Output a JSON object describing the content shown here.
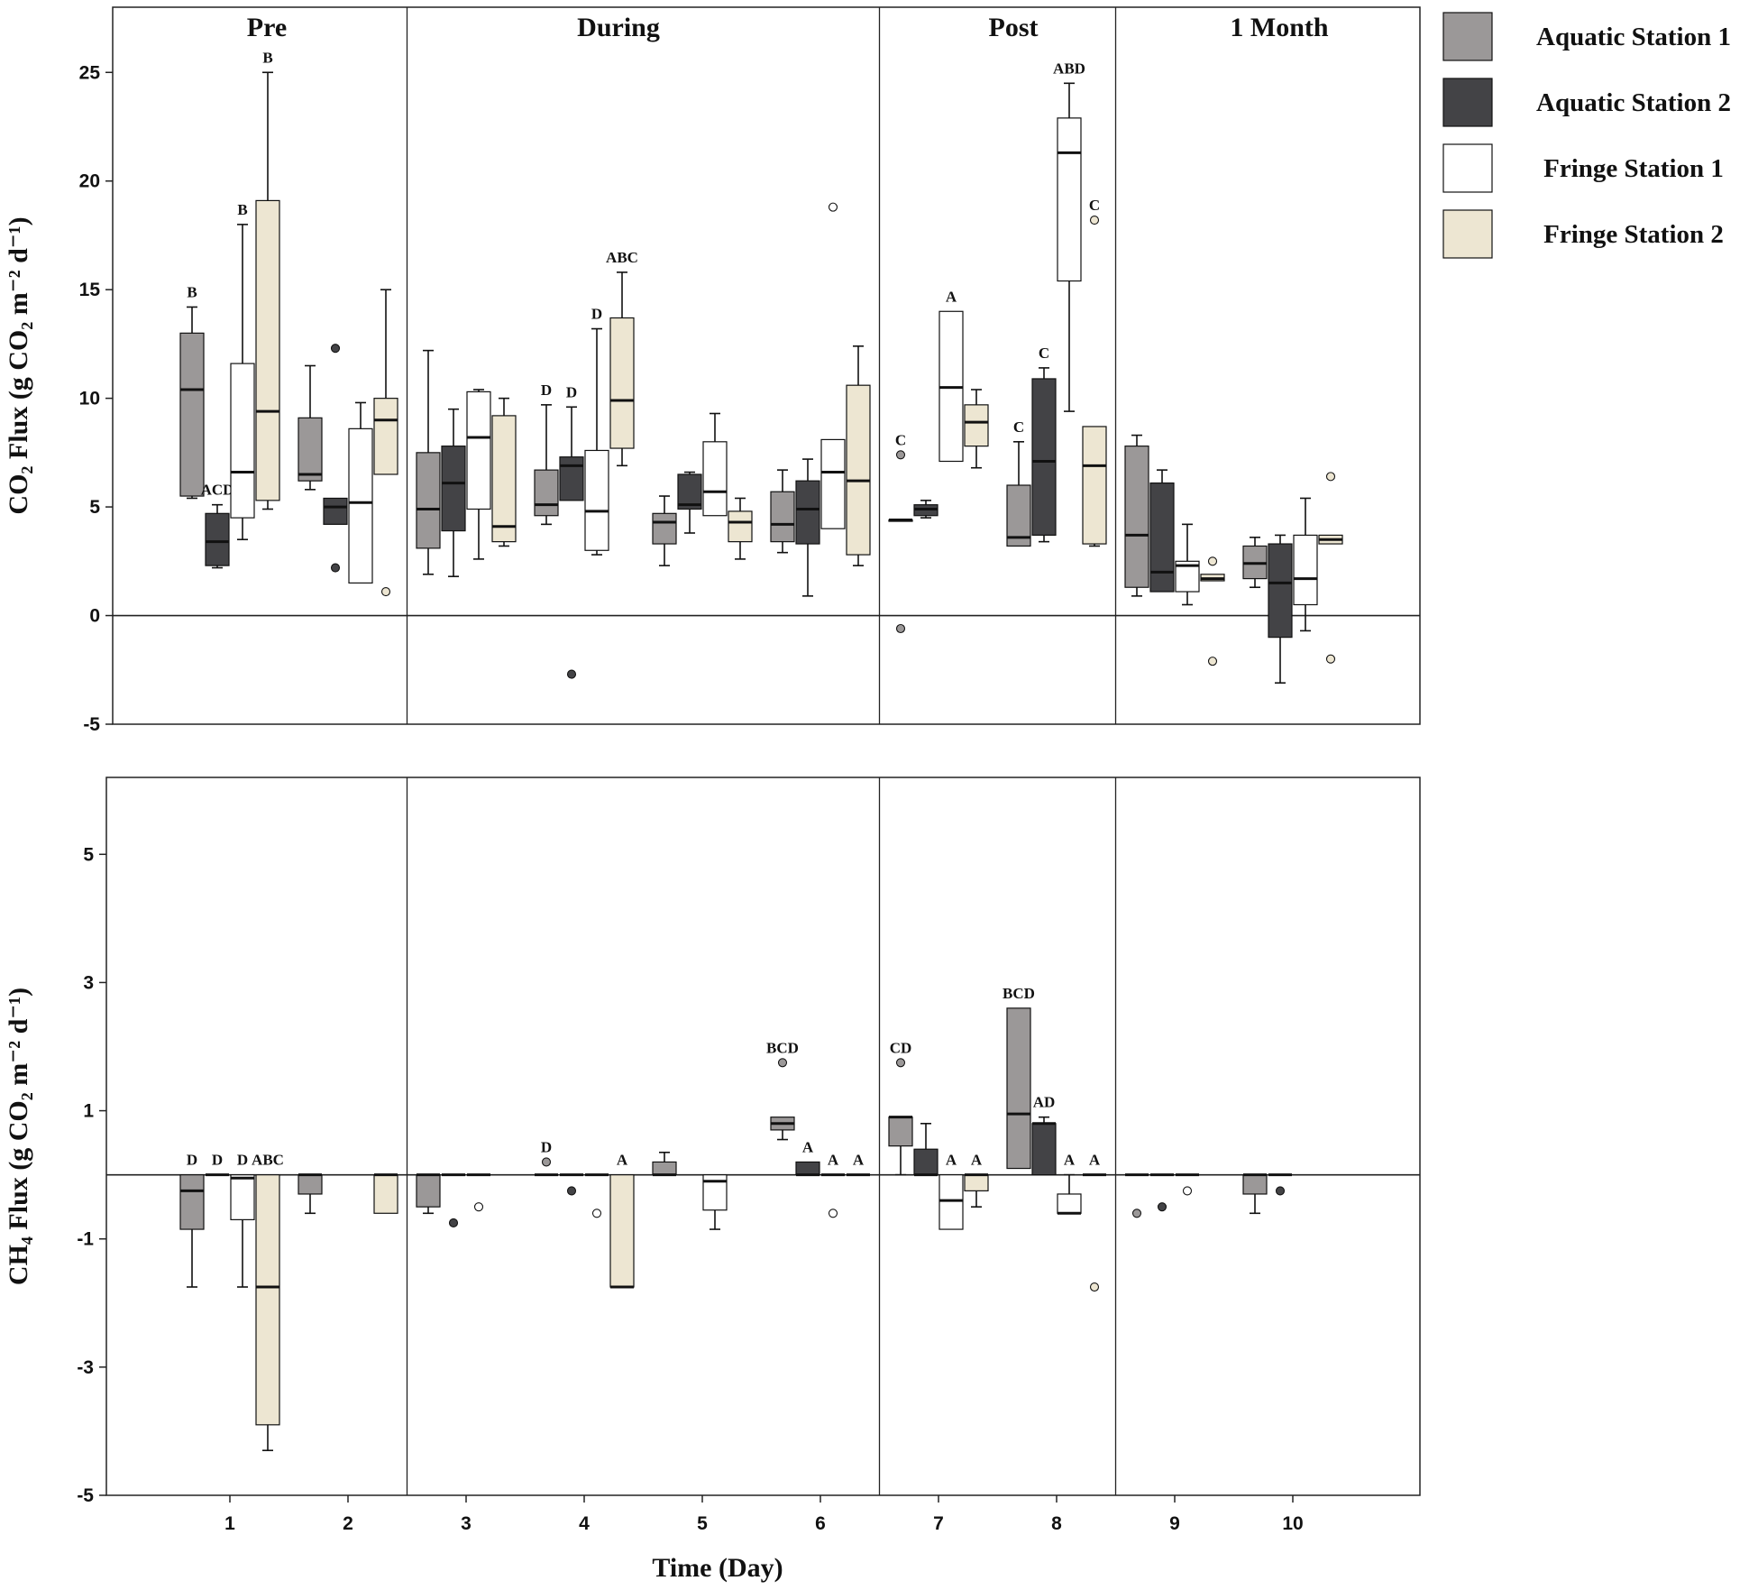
{
  "chart_data": {
    "type": "box",
    "xlabel": "Time (Day)",
    "days": [
      "1",
      "2",
      "3",
      "4",
      "5",
      "6",
      "7",
      "8",
      "9",
      "10"
    ],
    "phases": [
      "Pre",
      "During",
      "Post",
      "1 Month"
    ],
    "series": [
      {
        "name": "Aquatic Station 1",
        "color": "#9b9898"
      },
      {
        "name": "Aquatic Station 2",
        "color": "#434346"
      },
      {
        "name": "Fringe Station 1",
        "color": "#ffffff"
      },
      {
        "name": "Fringe Station 2",
        "color": "#ede6d2"
      }
    ],
    "panels": [
      {
        "id": "co2",
        "ylabel": "CO₂ Flux (g CO₂ m⁻² d⁻¹)",
        "ylim": [
          -5,
          28
        ],
        "yticks": [
          "-5",
          "0",
          "5",
          "10",
          "15",
          "20",
          "25"
        ],
        "tick_values": [
          -5,
          0,
          5,
          10,
          15,
          20,
          25
        ],
        "phase_breaks": [
          2.5,
          6.5,
          8.5
        ],
        "boxes": [
          {
            "day": 1,
            "s": 0,
            "q1": 5.5,
            "med": 10.4,
            "q3": 13.0,
            "lo": 5.4,
            "hi": 14.2,
            "letter": "B",
            "out": []
          },
          {
            "day": 1,
            "s": 1,
            "q1": 2.3,
            "med": 3.4,
            "q3": 4.7,
            "lo": 2.2,
            "hi": 5.1,
            "letter": "ACD",
            "out": []
          },
          {
            "day": 1,
            "s": 2,
            "q1": 4.5,
            "med": 6.6,
            "q3": 11.6,
            "lo": 3.5,
            "hi": 18.0,
            "letter": "B",
            "out": []
          },
          {
            "day": 1,
            "s": 3,
            "q1": 5.3,
            "med": 9.4,
            "q3": 19.1,
            "lo": 4.9,
            "hi": 25.0,
            "letter": "B",
            "out": []
          },
          {
            "day": 2,
            "s": 0,
            "q1": 6.2,
            "med": 6.5,
            "q3": 9.1,
            "lo": 5.8,
            "hi": 11.5,
            "letter": "",
            "out": []
          },
          {
            "day": 2,
            "s": 1,
            "q1": 4.2,
            "med": 5.0,
            "q3": 5.4,
            "lo": 4.2,
            "hi": 5.4,
            "letter": "",
            "out": [
              12.3,
              2.2
            ]
          },
          {
            "day": 2,
            "s": 2,
            "q1": 1.5,
            "med": 5.2,
            "q3": 8.6,
            "lo": 1.5,
            "hi": 9.8,
            "letter": "",
            "out": []
          },
          {
            "day": 2,
            "s": 3,
            "q1": 6.5,
            "med": 9.0,
            "q3": 10.0,
            "lo": 6.5,
            "hi": 15.0,
            "letter": "",
            "out": [
              1.1
            ]
          },
          {
            "day": 3,
            "s": 0,
            "q1": 3.1,
            "med": 4.9,
            "q3": 7.5,
            "lo": 1.9,
            "hi": 12.2,
            "letter": "",
            "out": []
          },
          {
            "day": 3,
            "s": 1,
            "q1": 3.9,
            "med": 6.1,
            "q3": 7.8,
            "lo": 1.8,
            "hi": 9.5,
            "letter": "",
            "out": []
          },
          {
            "day": 3,
            "s": 2,
            "q1": 4.9,
            "med": 8.2,
            "q3": 10.3,
            "lo": 2.6,
            "hi": 10.4,
            "letter": "",
            "out": []
          },
          {
            "day": 3,
            "s": 3,
            "q1": 3.4,
            "med": 4.1,
            "q3": 9.2,
            "lo": 3.2,
            "hi": 10.0,
            "letter": "",
            "out": []
          },
          {
            "day": 4,
            "s": 0,
            "q1": 4.6,
            "med": 5.1,
            "q3": 6.7,
            "lo": 4.2,
            "hi": 9.7,
            "letter": "D",
            "out": []
          },
          {
            "day": 4,
            "s": 1,
            "q1": 5.3,
            "med": 6.9,
            "q3": 7.3,
            "lo": 5.3,
            "hi": 9.6,
            "letter": "D",
            "out": [
              -2.7
            ]
          },
          {
            "day": 4,
            "s": 2,
            "q1": 3.0,
            "med": 4.8,
            "q3": 7.6,
            "lo": 2.8,
            "hi": 13.2,
            "letter": "D",
            "out": []
          },
          {
            "day": 4,
            "s": 3,
            "q1": 7.7,
            "med": 9.9,
            "q3": 13.7,
            "lo": 6.9,
            "hi": 15.8,
            "letter": "ABC",
            "out": []
          },
          {
            "day": 5,
            "s": 0,
            "q1": 3.3,
            "med": 4.3,
            "q3": 4.7,
            "lo": 2.3,
            "hi": 5.5,
            "letter": "",
            "out": []
          },
          {
            "day": 5,
            "s": 1,
            "q1": 4.9,
            "med": 5.1,
            "q3": 6.5,
            "lo": 3.8,
            "hi": 6.6,
            "letter": "",
            "out": []
          },
          {
            "day": 5,
            "s": 2,
            "q1": 4.6,
            "med": 5.7,
            "q3": 8.0,
            "lo": 4.6,
            "hi": 9.3,
            "letter": "",
            "out": []
          },
          {
            "day": 5,
            "s": 3,
            "q1": 3.4,
            "med": 4.3,
            "q3": 4.8,
            "lo": 2.6,
            "hi": 5.4,
            "letter": "",
            "out": []
          },
          {
            "day": 6,
            "s": 0,
            "q1": 3.4,
            "med": 4.2,
            "q3": 5.7,
            "lo": 2.9,
            "hi": 6.7,
            "letter": "",
            "out": []
          },
          {
            "day": 6,
            "s": 1,
            "q1": 3.3,
            "med": 4.9,
            "q3": 6.2,
            "lo": 0.9,
            "hi": 7.2,
            "letter": "",
            "out": []
          },
          {
            "day": 6,
            "s": 2,
            "q1": 4.0,
            "med": 6.6,
            "q3": 8.1,
            "lo": 4.0,
            "hi": 8.1,
            "letter": "",
            "out": [
              18.8
            ]
          },
          {
            "day": 6,
            "s": 3,
            "q1": 2.8,
            "med": 6.2,
            "q3": 10.6,
            "lo": 2.3,
            "hi": 12.4,
            "letter": "",
            "out": []
          },
          {
            "day": 7,
            "s": 0,
            "q1": 4.4,
            "med": 4.4,
            "q3": 4.4,
            "lo": 4.4,
            "hi": 4.4,
            "letter": "C",
            "out": [
              7.4,
              -0.6
            ]
          },
          {
            "day": 7,
            "s": 1,
            "q1": 4.6,
            "med": 4.9,
            "q3": 5.1,
            "lo": 4.5,
            "hi": 5.3,
            "letter": "",
            "out": []
          },
          {
            "day": 7,
            "s": 2,
            "q1": 7.1,
            "med": 10.5,
            "q3": 14.0,
            "lo": 7.1,
            "hi": 14.0,
            "letter": "A",
            "out": []
          },
          {
            "day": 7,
            "s": 3,
            "q1": 7.8,
            "med": 8.9,
            "q3": 9.7,
            "lo": 6.8,
            "hi": 10.4,
            "letter": "",
            "out": []
          },
          {
            "day": 8,
            "s": 0,
            "q1": 3.2,
            "med": 3.6,
            "q3": 6.0,
            "lo": 3.2,
            "hi": 8.0,
            "letter": "C",
            "out": []
          },
          {
            "day": 8,
            "s": 1,
            "q1": 3.7,
            "med": 7.1,
            "q3": 10.9,
            "lo": 3.4,
            "hi": 11.4,
            "letter": "C",
            "out": []
          },
          {
            "day": 8,
            "s": 2,
            "q1": 15.4,
            "med": 21.3,
            "q3": 22.9,
            "lo": 9.4,
            "hi": 24.5,
            "letter": "ABD",
            "out": []
          },
          {
            "day": 8,
            "s": 3,
            "q1": 3.3,
            "med": 6.9,
            "q3": 8.7,
            "lo": 3.2,
            "hi": 8.7,
            "letter": "C",
            "out": [
              18.2
            ]
          },
          {
            "day": 9,
            "s": 0,
            "q1": 1.3,
            "med": 3.7,
            "q3": 7.8,
            "lo": 0.9,
            "hi": 8.3,
            "letter": "",
            "out": []
          },
          {
            "day": 9,
            "s": 1,
            "q1": 1.1,
            "med": 2.0,
            "q3": 6.1,
            "lo": 1.1,
            "hi": 6.7,
            "letter": "",
            "out": []
          },
          {
            "day": 9,
            "s": 2,
            "q1": 1.1,
            "med": 2.3,
            "q3": 2.5,
            "lo": 0.5,
            "hi": 4.2,
            "letter": "",
            "out": []
          },
          {
            "day": 9,
            "s": 3,
            "q1": 1.6,
            "med": 1.7,
            "q3": 1.9,
            "lo": 1.6,
            "hi": 1.9,
            "letter": "",
            "out": [
              2.5,
              -2.1
            ]
          },
          {
            "day": 10,
            "s": 0,
            "q1": 1.7,
            "med": 2.4,
            "q3": 3.2,
            "lo": 1.3,
            "hi": 3.6,
            "letter": "",
            "out": []
          },
          {
            "day": 10,
            "s": 1,
            "q1": -1.0,
            "med": 1.5,
            "q3": 3.3,
            "lo": -3.1,
            "hi": 3.7,
            "letter": "",
            "out": []
          },
          {
            "day": 10,
            "s": 2,
            "q1": 0.5,
            "med": 1.7,
            "q3": 3.7,
            "lo": -0.7,
            "hi": 5.4,
            "letter": "",
            "out": []
          },
          {
            "day": 10,
            "s": 3,
            "q1": 3.3,
            "med": 3.5,
            "q3": 3.7,
            "lo": 3.3,
            "hi": 3.7,
            "letter": "",
            "out": [
              6.4,
              -2.0
            ]
          }
        ]
      },
      {
        "id": "ch4",
        "ylabel": "CH₄ Flux (g CO₂ m⁻² d⁻¹)",
        "ylim": [
          -5,
          6.2
        ],
        "yticks": [
          "-5",
          "-3",
          "-1",
          "1",
          "3",
          "5"
        ],
        "tick_values": [
          -5,
          -3,
          -1,
          1,
          3,
          5
        ],
        "phase_breaks": [
          2.5,
          6.5,
          8.5
        ],
        "boxes": [
          {
            "day": 1,
            "s": 0,
            "q1": -0.85,
            "med": -0.25,
            "q3": 0.0,
            "lo": -1.75,
            "hi": 0.0,
            "letter": "D",
            "out": []
          },
          {
            "day": 1,
            "s": 1,
            "q1": 0.0,
            "med": 0.0,
            "q3": 0.0,
            "lo": 0.0,
            "hi": 0.0,
            "letter": "D",
            "out": []
          },
          {
            "day": 1,
            "s": 2,
            "q1": -0.7,
            "med": -0.05,
            "q3": 0.0,
            "lo": -1.75,
            "hi": 0.0,
            "letter": "D",
            "out": []
          },
          {
            "day": 1,
            "s": 3,
            "q1": -3.9,
            "med": -1.75,
            "q3": 0.0,
            "lo": -4.3,
            "hi": 0.0,
            "letter": "ABC",
            "out": []
          },
          {
            "day": 2,
            "s": 0,
            "q1": -0.3,
            "med": 0.0,
            "q3": 0.0,
            "lo": -0.6,
            "hi": 0.0,
            "letter": "",
            "out": []
          },
          {
            "day": 2,
            "s": 3,
            "q1": -0.6,
            "med": 0.0,
            "q3": 0.0,
            "lo": -0.6,
            "hi": 0.0,
            "letter": "",
            "out": []
          },
          {
            "day": 3,
            "s": 0,
            "q1": -0.5,
            "med": 0.0,
            "q3": 0.0,
            "lo": -0.6,
            "hi": 0.0,
            "letter": "",
            "out": []
          },
          {
            "day": 3,
            "s": 1,
            "q1": 0.0,
            "med": 0.0,
            "q3": 0.0,
            "lo": 0.0,
            "hi": 0.0,
            "letter": "",
            "out": [
              -0.75
            ]
          },
          {
            "day": 3,
            "s": 2,
            "q1": 0.0,
            "med": 0.0,
            "q3": 0.0,
            "lo": 0.0,
            "hi": 0.0,
            "letter": "",
            "out": [
              -0.5
            ]
          },
          {
            "day": 4,
            "s": 0,
            "q1": 0.0,
            "med": 0.0,
            "q3": 0.0,
            "lo": 0.0,
            "hi": 0.0,
            "letter": "D",
            "out": [
              0.2
            ]
          },
          {
            "day": 4,
            "s": 1,
            "q1": 0.0,
            "med": 0.0,
            "q3": 0.0,
            "lo": 0.0,
            "hi": 0.0,
            "letter": "",
            "out": [
              -0.25
            ]
          },
          {
            "day": 4,
            "s": 2,
            "q1": 0.0,
            "med": 0.0,
            "q3": 0.0,
            "lo": 0.0,
            "hi": 0.0,
            "letter": "",
            "out": [
              -0.6
            ]
          },
          {
            "day": 4,
            "s": 3,
            "q1": -1.75,
            "med": -1.75,
            "q3": 0.0,
            "lo": -1.75,
            "hi": 0.0,
            "letter": "A",
            "out": []
          },
          {
            "day": 5,
            "s": 0,
            "q1": 0.0,
            "med": 0.0,
            "q3": 0.2,
            "lo": 0.0,
            "hi": 0.35,
            "letter": "",
            "out": []
          },
          {
            "day": 5,
            "s": 2,
            "q1": -0.55,
            "med": -0.1,
            "q3": 0.0,
            "lo": -0.85,
            "hi": 0.0,
            "letter": "",
            "out": []
          },
          {
            "day": 6,
            "s": 0,
            "q1": 0.7,
            "med": 0.8,
            "q3": 0.9,
            "lo": 0.55,
            "hi": 0.9,
            "letter": "BCD",
            "out": [
              1.75
            ]
          },
          {
            "day": 6,
            "s": 1,
            "q1": 0.0,
            "med": 0.0,
            "q3": 0.2,
            "lo": 0.0,
            "hi": 0.2,
            "letter": "A",
            "out": []
          },
          {
            "day": 6,
            "s": 2,
            "q1": 0.0,
            "med": 0.0,
            "q3": 0.0,
            "lo": 0.0,
            "hi": 0.0,
            "letter": "A",
            "out": [
              -0.6
            ]
          },
          {
            "day": 6,
            "s": 3,
            "q1": 0.0,
            "med": 0.0,
            "q3": 0.0,
            "lo": 0.0,
            "hi": 0.0,
            "letter": "A",
            "out": []
          },
          {
            "day": 7,
            "s": 0,
            "q1": 0.45,
            "med": 0.9,
            "q3": 0.9,
            "lo": 0.0,
            "hi": 0.9,
            "letter": "CD",
            "out": [
              1.75
            ]
          },
          {
            "day": 7,
            "s": 1,
            "q1": 0.0,
            "med": 0.0,
            "q3": 0.4,
            "lo": 0.0,
            "hi": 0.8,
            "letter": "",
            "out": []
          },
          {
            "day": 7,
            "s": 2,
            "q1": -0.85,
            "med": -0.4,
            "q3": 0.0,
            "lo": -0.85,
            "hi": 0.0,
            "letter": "A",
            "out": []
          },
          {
            "day": 7,
            "s": 3,
            "q1": -0.25,
            "med": 0.0,
            "q3": 0.0,
            "lo": -0.5,
            "hi": 0.0,
            "letter": "A",
            "out": []
          },
          {
            "day": 8,
            "s": 0,
            "q1": 0.1,
            "med": 0.95,
            "q3": 2.6,
            "lo": 0.1,
            "hi": 2.6,
            "letter": "BCD",
            "out": []
          },
          {
            "day": 8,
            "s": 1,
            "q1": 0.0,
            "med": 0.8,
            "q3": 0.8,
            "lo": 0.0,
            "hi": 0.9,
            "letter": "AD",
            "out": []
          },
          {
            "day": 8,
            "s": 2,
            "q1": -0.6,
            "med": -0.6,
            "q3": -0.3,
            "lo": -0.6,
            "hi": 0.0,
            "letter": "A",
            "out": []
          },
          {
            "day": 8,
            "s": 3,
            "q1": 0.0,
            "med": 0.0,
            "q3": 0.0,
            "lo": 0.0,
            "hi": 0.0,
            "letter": "A",
            "out": [
              -1.75
            ]
          },
          {
            "day": 9,
            "s": 0,
            "q1": 0.0,
            "med": 0.0,
            "q3": 0.0,
            "lo": 0.0,
            "hi": 0.0,
            "letter": "",
            "out": [
              -0.6
            ]
          },
          {
            "day": 9,
            "s": 1,
            "q1": 0.0,
            "med": 0.0,
            "q3": 0.0,
            "lo": 0.0,
            "hi": 0.0,
            "letter": "",
            "out": [
              -0.5
            ]
          },
          {
            "day": 9,
            "s": 2,
            "q1": 0.0,
            "med": 0.0,
            "q3": 0.0,
            "lo": 0.0,
            "hi": 0.0,
            "letter": "",
            "out": [
              -0.25
            ]
          },
          {
            "day": 10,
            "s": 0,
            "q1": -0.3,
            "med": 0.0,
            "q3": 0.0,
            "lo": -0.6,
            "hi": 0.0,
            "letter": "",
            "out": []
          },
          {
            "day": 10,
            "s": 1,
            "q1": 0.0,
            "med": 0.0,
            "q3": 0.0,
            "lo": 0.0,
            "hi": 0.0,
            "letter": "",
            "out": [
              -0.25
            ]
          }
        ]
      }
    ]
  }
}
